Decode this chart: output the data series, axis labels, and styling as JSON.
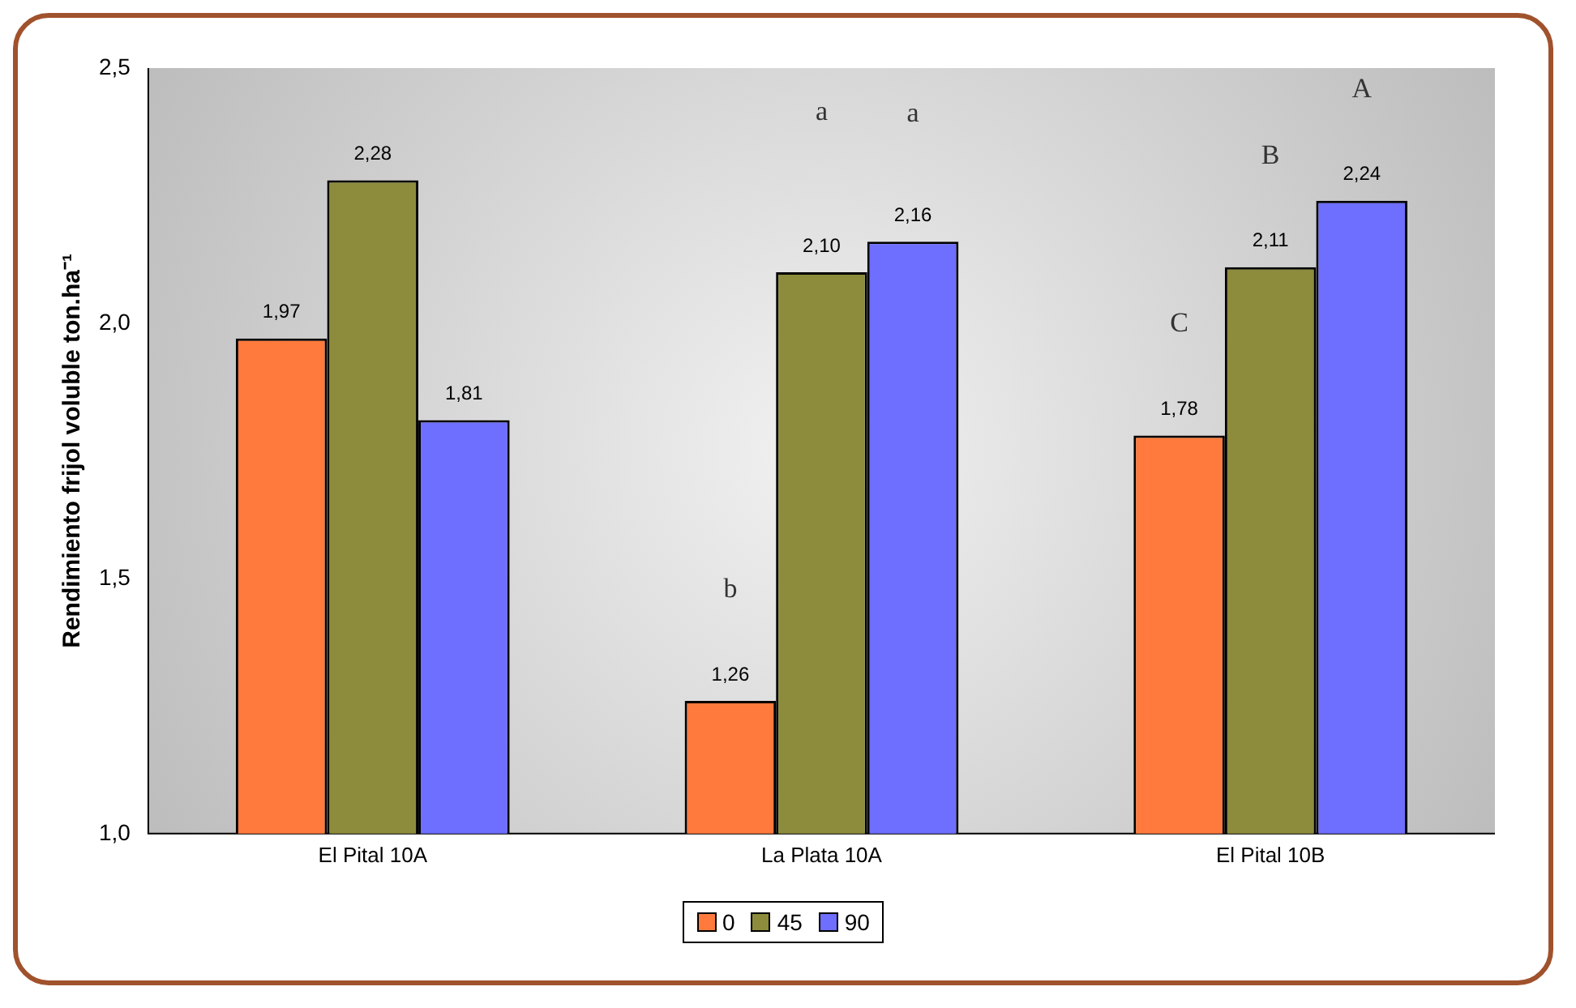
{
  "chart_data": {
    "type": "bar",
    "ylabel": "Rendimiento frijol voluble ton.ha⁻¹",
    "categories": [
      "El Pital 10A",
      "La Plata 10A",
      "El Pital 10B"
    ],
    "series": [
      {
        "name": "0",
        "color": "#ff7a3c",
        "values": [
          1.97,
          1.26,
          1.78
        ],
        "value_labels": [
          "1,97",
          "1,26",
          "1,78"
        ]
      },
      {
        "name": "45",
        "color": "#8c8c3c",
        "values": [
          2.28,
          2.1,
          2.11
        ],
        "value_labels": [
          "2,28",
          "2,10",
          "2,11"
        ]
      },
      {
        "name": "90",
        "color": "#6e6eff",
        "values": [
          1.81,
          2.16,
          2.24
        ],
        "value_labels": [
          "1,81",
          "2,16",
          "2,24"
        ]
      }
    ],
    "ylim": [
      1,
      2.5
    ],
    "yticks": [
      {
        "value": 1,
        "label": "1,0"
      },
      {
        "value": 1.5,
        "label": "1,5"
      },
      {
        "value": 2,
        "label": "2,0"
      },
      {
        "value": 2.5,
        "label": "2,5"
      }
    ],
    "legend": "bottom",
    "grid": false,
    "annotations": [
      "b",
      "a",
      "a",
      "C",
      "B",
      "A"
    ]
  }
}
